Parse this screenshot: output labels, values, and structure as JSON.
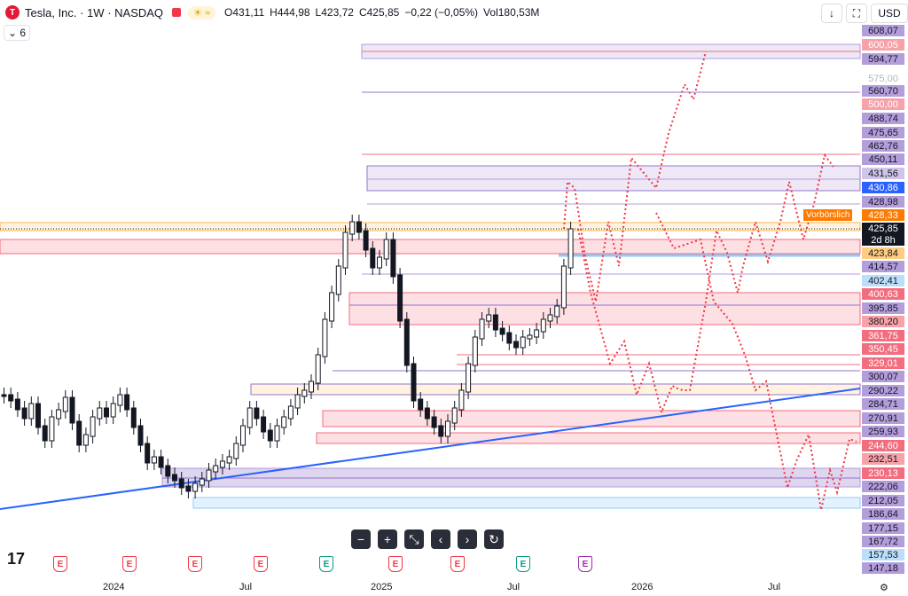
{
  "header": {
    "symbol_name": "Tesla, Inc. · 1W · NASDAQ",
    "logo_letter": "T",
    "ohlc": {
      "o": "O431,11",
      "h": "H444,98",
      "l": "L423,72",
      "c": "C425,85",
      "change": "−0,22 (−0,05%)",
      "vol": "Vol180,53M"
    },
    "weather_icon": "sun-wave-icon",
    "currency": "USD",
    "indicator_count": "6"
  },
  "price_scale": {
    "labels": [
      {
        "text": "608,07",
        "bg": "#b39ddb",
        "fg": "#131722"
      },
      {
        "text": "600,05",
        "bg": "#f7a1a8",
        "fg": "#fff"
      },
      {
        "text": "594,77",
        "bg": "#b39ddb",
        "fg": "#131722"
      },
      {
        "text": "575,00",
        "bg": "none",
        "fg": "#b2b5be"
      },
      {
        "text": "560,70",
        "bg": "#b39ddb",
        "fg": "#131722"
      },
      {
        "text": "500,00",
        "bg": "#f7a1a8",
        "fg": "#fff"
      },
      {
        "text": "488,74",
        "bg": "#b39ddb",
        "fg": "#131722"
      },
      {
        "text": "475,65",
        "bg": "#b39ddb",
        "fg": "#131722"
      },
      {
        "text": "462,76",
        "bg": "#b39ddb",
        "fg": "#131722"
      },
      {
        "text": "450,11",
        "bg": "#b39ddb",
        "fg": "#131722"
      },
      {
        "text": "431,56",
        "bg": "#d1c4e9",
        "fg": "#131722"
      },
      {
        "text": "430,86",
        "bg": "#2962ff",
        "fg": "#fff"
      },
      {
        "text": "428,98",
        "bg": "#b39ddb",
        "fg": "#131722"
      },
      {
        "text": "428,33",
        "bg": "#ff7a00",
        "fg": "#fff"
      },
      {
        "text": "425,85",
        "bg": "#131722",
        "fg": "#fff"
      },
      {
        "text": "2d 8h",
        "bg": "#131722",
        "fg": "#fff"
      },
      {
        "text": "423,84",
        "bg": "#ffcc80",
        "fg": "#131722"
      },
      {
        "text": "414,57",
        "bg": "#b39ddb",
        "fg": "#131722"
      },
      {
        "text": "402,41",
        "bg": "#bbdefb",
        "fg": "#131722"
      },
      {
        "text": "400,63",
        "bg": "#f26d7d",
        "fg": "#fff"
      },
      {
        "text": "395,85",
        "bg": "#b39ddb",
        "fg": "#131722"
      },
      {
        "text": "380,20",
        "bg": "#f7a1a8",
        "fg": "#131722"
      },
      {
        "text": "361,75",
        "bg": "#f26d7d",
        "fg": "#fff"
      },
      {
        "text": "350,45",
        "bg": "#f26d7d",
        "fg": "#fff"
      },
      {
        "text": "329,01",
        "bg": "#f26d7d",
        "fg": "#fff"
      },
      {
        "text": "300,07",
        "bg": "#b39ddb",
        "fg": "#131722"
      },
      {
        "text": "290,22",
        "bg": "#b39ddb",
        "fg": "#131722"
      },
      {
        "text": "284,71",
        "bg": "#b39ddb",
        "fg": "#131722"
      },
      {
        "text": "270,91",
        "bg": "#b39ddb",
        "fg": "#131722"
      },
      {
        "text": "259,93",
        "bg": "#b39ddb",
        "fg": "#131722"
      },
      {
        "text": "244,60",
        "bg": "#f26d7d",
        "fg": "#fff"
      },
      {
        "text": "232,51",
        "bg": "#f7a1a8",
        "fg": "#131722"
      },
      {
        "text": "230,13",
        "bg": "#f26d7d",
        "fg": "#fff"
      },
      {
        "text": "222,06",
        "bg": "#b39ddb",
        "fg": "#131722"
      },
      {
        "text": "212,05",
        "bg": "#b39ddb",
        "fg": "#131722"
      },
      {
        "text": "186,64",
        "bg": "#b39ddb",
        "fg": "#131722"
      },
      {
        "text": "177,15",
        "bg": "#b39ddb",
        "fg": "#131722"
      },
      {
        "text": "167,72",
        "bg": "#b39ddb",
        "fg": "#131722"
      },
      {
        "text": "157,53",
        "bg": "#bbdefb",
        "fg": "#131722"
      },
      {
        "text": "147,18",
        "bg": "#b39ddb",
        "fg": "#131722"
      }
    ]
  },
  "vorboerslich_label": "Vorbörslich",
  "time_axis": [
    "2024",
    "Jul",
    "2025",
    "Jul",
    "2026",
    "Jul"
  ],
  "zoom_controls": [
    "−",
    "+",
    "⤡",
    "‹",
    "›",
    "↻"
  ],
  "earnings_markers": [
    "E",
    "E",
    "E",
    "E",
    "E",
    "E",
    "E",
    "E",
    "E"
  ],
  "tradingview_logo": "17",
  "colors": {
    "up": "#ffffff",
    "down": "#131722",
    "trend": "#2962ff",
    "forecast": "#f23645"
  }
}
